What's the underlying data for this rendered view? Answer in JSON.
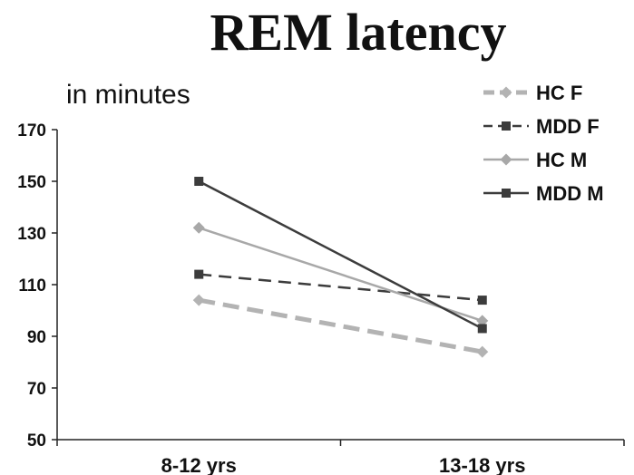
{
  "chart_data": {
    "type": "line",
    "title": "REM latency",
    "ylabel": "in minutes",
    "xlabel": "",
    "categories": [
      "8-12 yrs",
      "13-18 yrs"
    ],
    "ylim": [
      50,
      170
    ],
    "yticks": [
      50,
      70,
      90,
      110,
      130,
      150,
      170
    ],
    "grid": false,
    "legend_position": "top-right",
    "series": [
      {
        "name": "HC F",
        "values": [
          104,
          84
        ],
        "color": "#b3b3b3",
        "dashed": true,
        "marker": "diamond"
      },
      {
        "name": "MDD F",
        "values": [
          114,
          104
        ],
        "color": "#3c3c3c",
        "dashed": true,
        "marker": "square"
      },
      {
        "name": "HC M",
        "values": [
          132,
          96
        ],
        "color": "#a8a8a8",
        "dashed": false,
        "marker": "diamond"
      },
      {
        "name": "MDD M",
        "values": [
          150,
          93
        ],
        "color": "#3c3c3c",
        "dashed": false,
        "marker": "square"
      }
    ]
  }
}
